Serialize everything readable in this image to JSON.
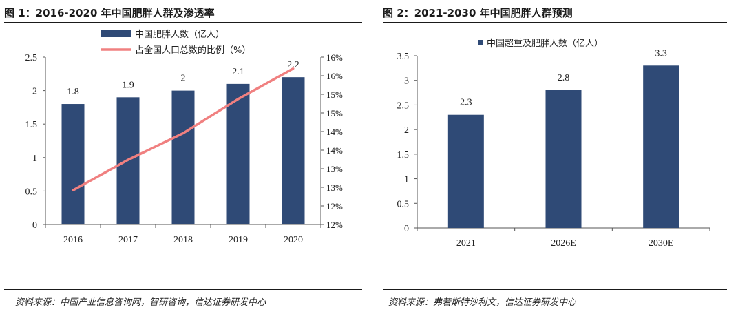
{
  "left": {
    "title": "图 1：2016-2020 年中国肥胖人群及渗透率",
    "source": "资料来源：中国产业信息咨询网，智研咨询，信达证券研发中心"
  },
  "right": {
    "title": "图 2：2021-2030 年中国肥胖人群预测",
    "source": "资料来源：弗若斯特沙利文，信达证券研发中心"
  },
  "colors": {
    "bar": "#2f4a76",
    "line": "#f08080",
    "axis": "#555555"
  },
  "chart_data": [
    {
      "type": "bar",
      "title": "",
      "categories": [
        "2016",
        "2017",
        "2018",
        "2019",
        "2020"
      ],
      "series": [
        {
          "name": "中国肥胖人数（亿人）",
          "type": "bar",
          "axis": "left",
          "values": [
            1.8,
            1.9,
            2,
            2.1,
            2.2
          ],
          "labels": [
            "1.8",
            "1.9",
            "2",
            "2.1",
            "2.2"
          ]
        },
        {
          "name": "占全国人口总数的比例（%）",
          "type": "line",
          "axis": "right",
          "values": [
            12.9,
            13.7,
            14.4,
            15.3,
            16.1
          ]
        }
      ],
      "ylim": [
        0,
        2.5
      ],
      "yticks": [
        "0",
        "0.5",
        "1",
        "1.5",
        "2",
        "2.5"
      ],
      "y2lim": [
        12,
        16.4
      ],
      "y2ticks": [
        "12%",
        "12%",
        "13%",
        "13%",
        "14%",
        "14%",
        "15%",
        "15%",
        "16%",
        "16%"
      ],
      "legend": "top",
      "grid": false
    },
    {
      "type": "bar",
      "title": "",
      "categories": [
        "2021",
        "2026E",
        "2030E"
      ],
      "series": [
        {
          "name": "中国超重及肥胖人数（亿人）",
          "values": [
            2.3,
            2.8,
            3.3
          ],
          "labels": [
            "2.3",
            "2.8",
            "3.3"
          ]
        }
      ],
      "ylim": [
        0,
        3.5
      ],
      "yticks": [
        "0",
        "0.5",
        "1",
        "1.5",
        "2",
        "2.5",
        "3",
        "3.5"
      ],
      "legend": "top",
      "grid": false
    }
  ]
}
